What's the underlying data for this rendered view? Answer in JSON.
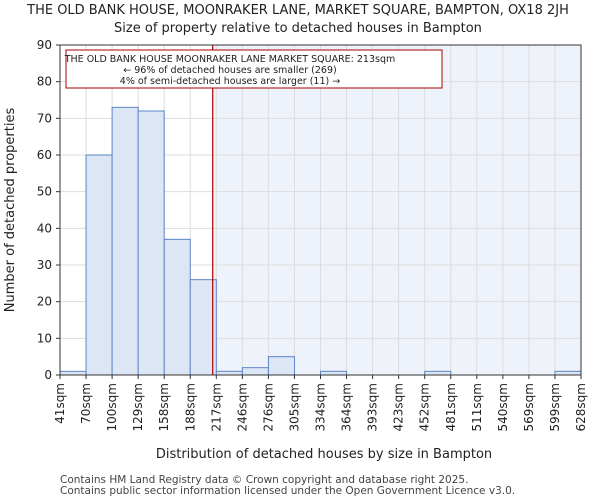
{
  "chart_data": {
    "type": "bar",
    "title": "THE OLD BANK HOUSE, MOONRAKER LANE, MARKET SQUARE, BAMPTON, OX18 2JH",
    "subtitle": "Size of property relative to detached houses in Bampton",
    "xlabel": "Distribution of detached houses by size in Bampton",
    "ylabel": "Number of detached properties",
    "ylim": [
      0,
      90
    ],
    "yticks": [
      0,
      10,
      20,
      30,
      40,
      50,
      60,
      70,
      80,
      90
    ],
    "bin_edges": [
      41,
      70,
      100,
      129,
      158,
      188,
      217,
      246,
      276,
      305,
      334,
      364,
      393,
      423,
      452,
      481,
      511,
      540,
      569,
      599,
      628
    ],
    "tick_labels": [
      "41sqm",
      "70sqm",
      "100sqm",
      "129sqm",
      "158sqm",
      "188sqm",
      "217sqm",
      "246sqm",
      "276sqm",
      "305sqm",
      "334sqm",
      "364sqm",
      "393sqm",
      "423sqm",
      "452sqm",
      "481sqm",
      "511sqm",
      "540sqm",
      "569sqm",
      "599sqm",
      "628sqm"
    ],
    "values": [
      1,
      60,
      73,
      72,
      37,
      26,
      1,
      2,
      5,
      0,
      1,
      0,
      0,
      0,
      1,
      0,
      0,
      0,
      0,
      1
    ],
    "marker_value": 213,
    "annotation": {
      "line1": "THE OLD BANK HOUSE MOONRAKER LANE MARKET SQUARE: 213sqm",
      "line2": "← 96% of detached houses are smaller (269)",
      "line3": "4% of semi-detached houses are larger (11) →"
    },
    "colors": {
      "bar_fill": "#dce6f5",
      "bar_edge": "#5b85c7",
      "marker": "#aa0000",
      "highlight_bg": "#eef2fb",
      "axis": "#333333"
    }
  },
  "footer": {
    "line1": "Contains HM Land Registry data © Crown copyright and database right 2025.",
    "line2": "Contains public sector information licensed under the Open Government Licence v3.0."
  }
}
